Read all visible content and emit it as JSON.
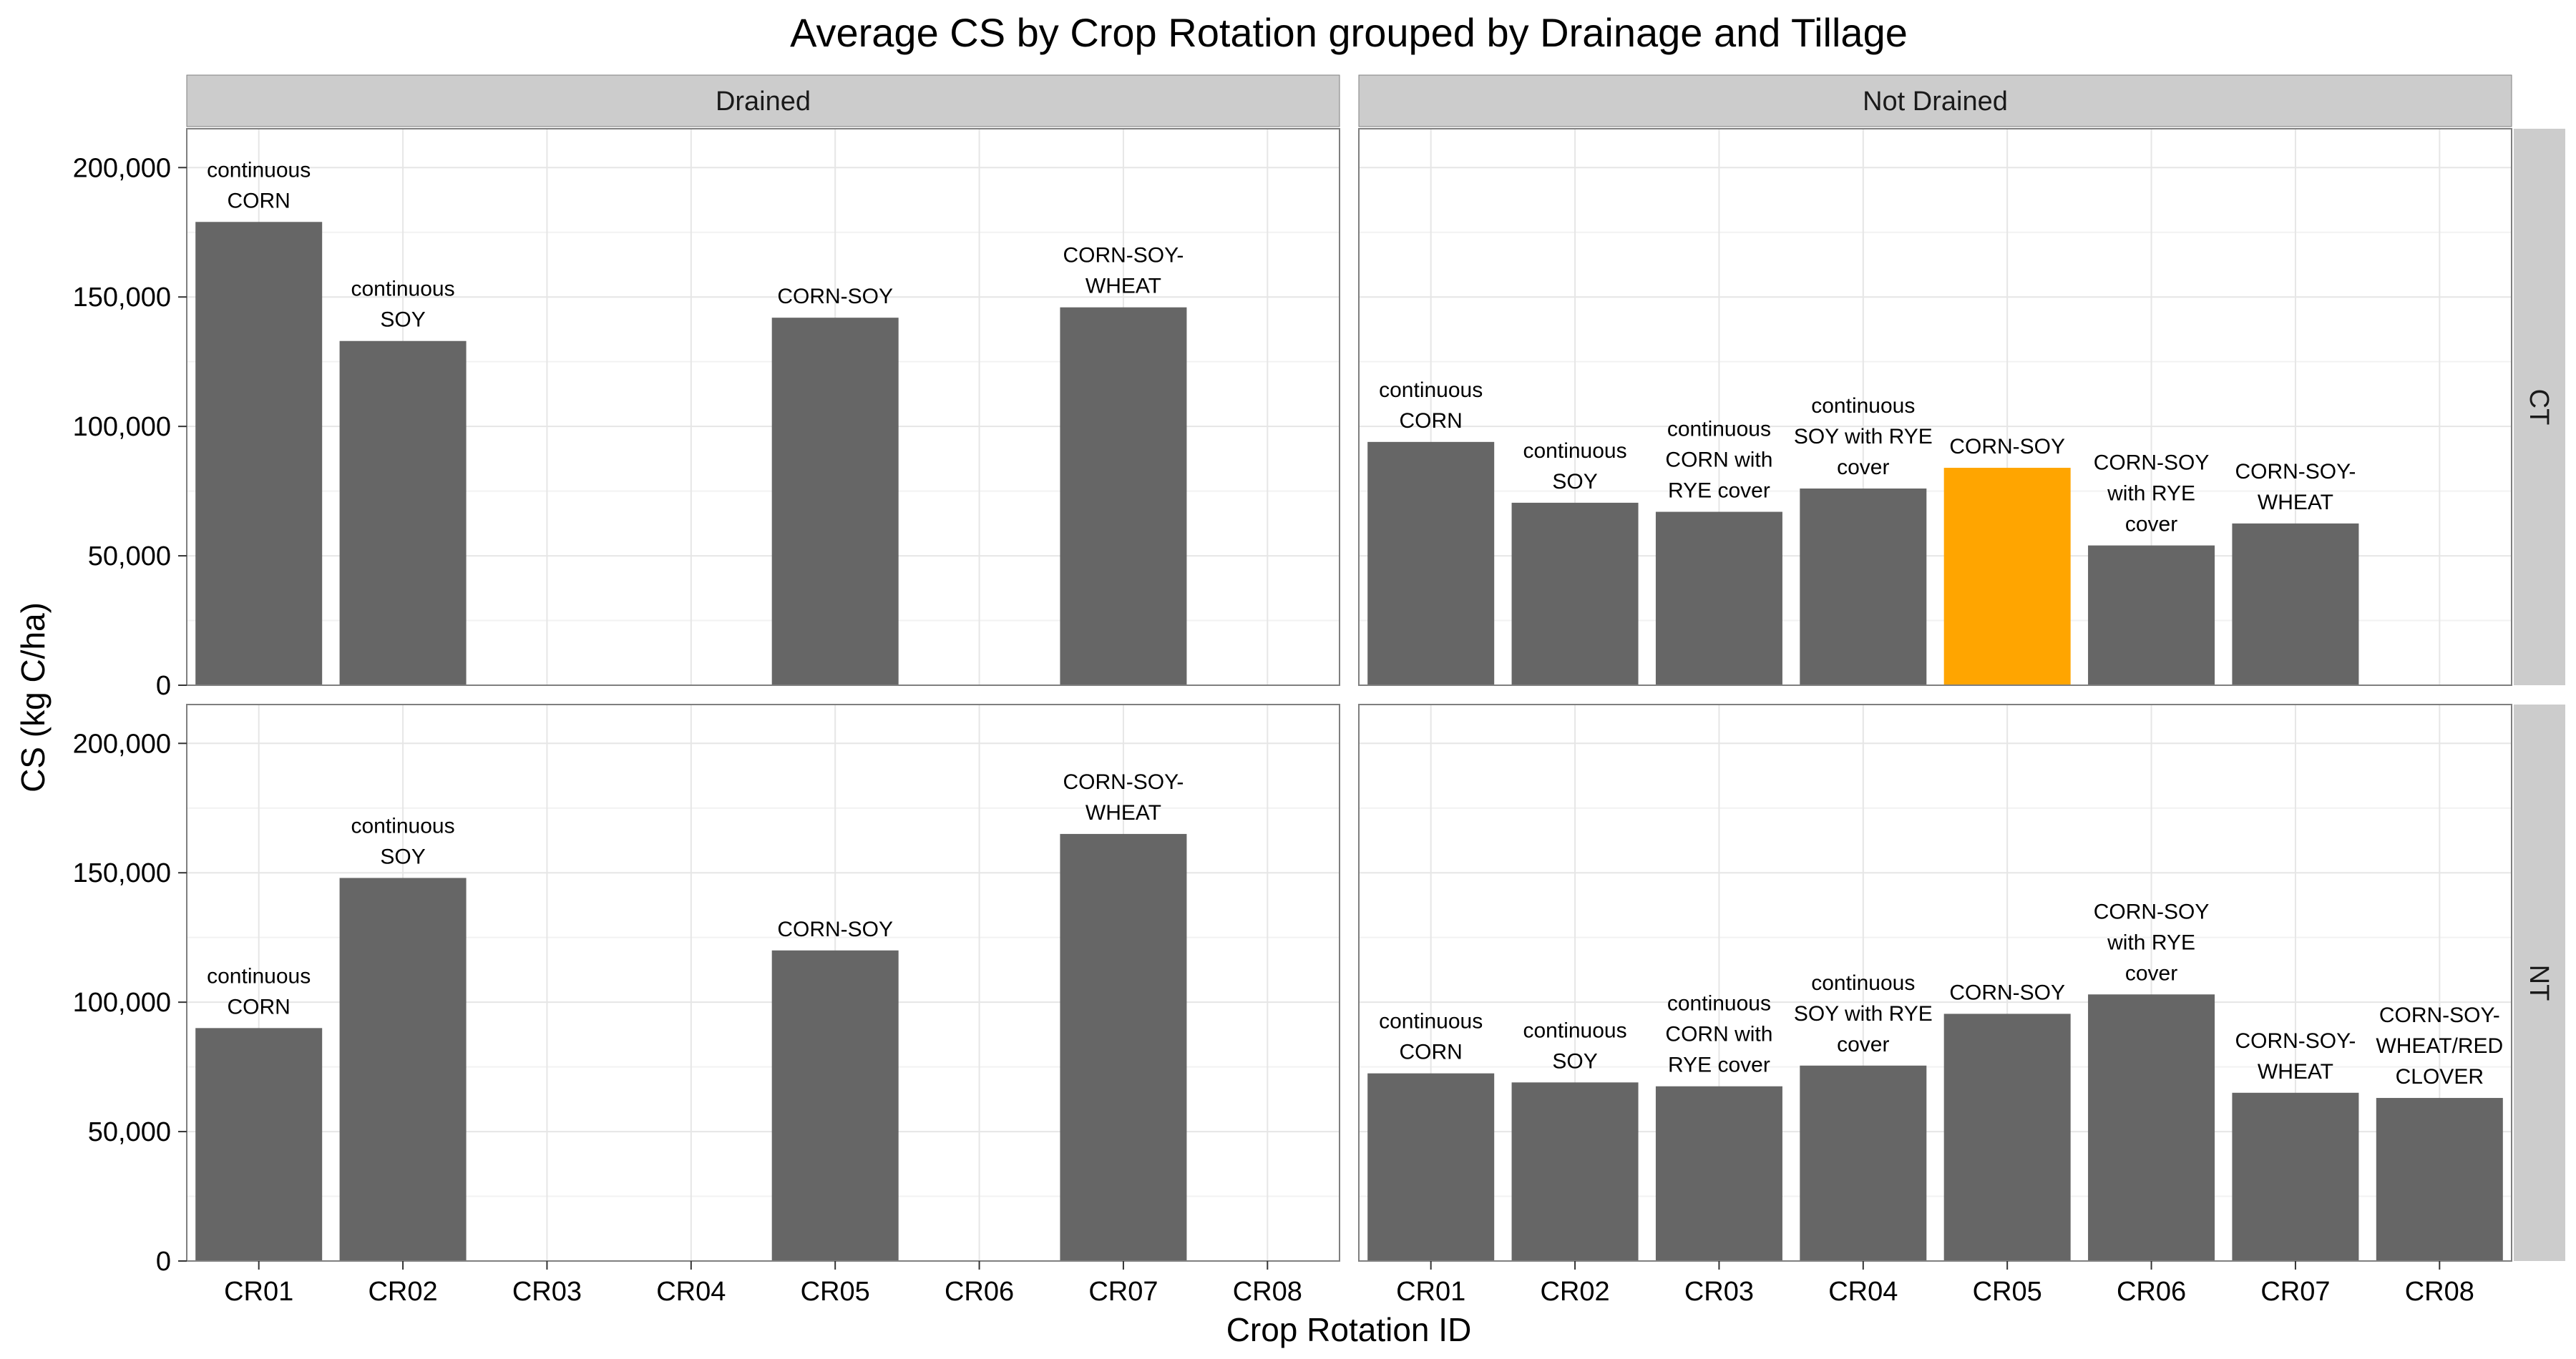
{
  "chart_data": {
    "type": "bar",
    "title": "Average CS by Crop Rotation grouped by Drainage and Tillage",
    "xlabel": "Crop Rotation ID",
    "ylabel": "CS (kg C/ha)",
    "ylim": [
      0,
      215000
    ],
    "yticks": [
      0,
      50000,
      100000,
      150000,
      200000
    ],
    "ytick_labels": [
      "0",
      "50,000",
      "100,000",
      "150,000",
      "200,000"
    ],
    "categories": [
      "CR01",
      "CR02",
      "CR03",
      "CR04",
      "CR05",
      "CR06",
      "CR07",
      "CR08"
    ],
    "column_facets": [
      "Drained",
      "Not Drained"
    ],
    "row_facets": [
      "CT",
      "NT"
    ],
    "grid": true,
    "bar_color": "#666666",
    "highlight_color": "#FFA500",
    "panels": [
      {
        "column": "Drained",
        "row": "CT",
        "bars": [
          {
            "x": "CR01",
            "value": 179000,
            "label": [
              "continuous",
              "CORN"
            ]
          },
          {
            "x": "CR02",
            "value": 133000,
            "label": [
              "continuous",
              "SOY"
            ]
          },
          {
            "x": "CR05",
            "value": 142000,
            "label": [
              "CORN-SOY"
            ]
          },
          {
            "x": "CR07",
            "value": 146000,
            "label": [
              "CORN-SOY-",
              "WHEAT"
            ]
          }
        ]
      },
      {
        "column": "Not Drained",
        "row": "CT",
        "bars": [
          {
            "x": "CR01",
            "value": 94000,
            "label": [
              "continuous",
              "CORN"
            ]
          },
          {
            "x": "CR02",
            "value": 70500,
            "label": [
              "continuous",
              "SOY"
            ]
          },
          {
            "x": "CR03",
            "value": 67000,
            "label": [
              "continuous",
              "CORN with",
              "RYE cover"
            ]
          },
          {
            "x": "CR04",
            "value": 76000,
            "label": [
              "continuous",
              "SOY with RYE",
              "cover"
            ]
          },
          {
            "x": "CR05",
            "value": 84000,
            "label": [
              "CORN-SOY"
            ],
            "highlight": true
          },
          {
            "x": "CR06",
            "value": 54000,
            "label": [
              "CORN-SOY",
              "with RYE",
              "cover"
            ]
          },
          {
            "x": "CR07",
            "value": 62500,
            "label": [
              "CORN-SOY-",
              "WHEAT"
            ]
          }
        ]
      },
      {
        "column": "Drained",
        "row": "NT",
        "bars": [
          {
            "x": "CR01",
            "value": 90000,
            "label": [
              "continuous",
              "CORN"
            ]
          },
          {
            "x": "CR02",
            "value": 148000,
            "label": [
              "continuous",
              "SOY"
            ]
          },
          {
            "x": "CR05",
            "value": 120000,
            "label": [
              "CORN-SOY"
            ]
          },
          {
            "x": "CR07",
            "value": 165000,
            "label": [
              "CORN-SOY-",
              "WHEAT"
            ]
          }
        ]
      },
      {
        "column": "Not Drained",
        "row": "NT",
        "bars": [
          {
            "x": "CR01",
            "value": 72500,
            "label": [
              "continuous",
              "CORN"
            ]
          },
          {
            "x": "CR02",
            "value": 69000,
            "label": [
              "continuous",
              "SOY"
            ]
          },
          {
            "x": "CR03",
            "value": 67500,
            "label": [
              "continuous",
              "CORN with",
              "RYE cover"
            ]
          },
          {
            "x": "CR04",
            "value": 75500,
            "label": [
              "continuous",
              "SOY with RYE",
              "cover"
            ]
          },
          {
            "x": "CR05",
            "value": 95500,
            "label": [
              "CORN-SOY"
            ]
          },
          {
            "x": "CR06",
            "value": 103000,
            "label": [
              "CORN-SOY",
              "with RYE",
              "cover"
            ]
          },
          {
            "x": "CR07",
            "value": 65000,
            "label": [
              "CORN-SOY-",
              "WHEAT"
            ]
          },
          {
            "x": "CR08",
            "value": 63000,
            "label": [
              "CORN-SOY-",
              "WHEAT/RED",
              "CLOVER"
            ]
          }
        ]
      }
    ]
  }
}
